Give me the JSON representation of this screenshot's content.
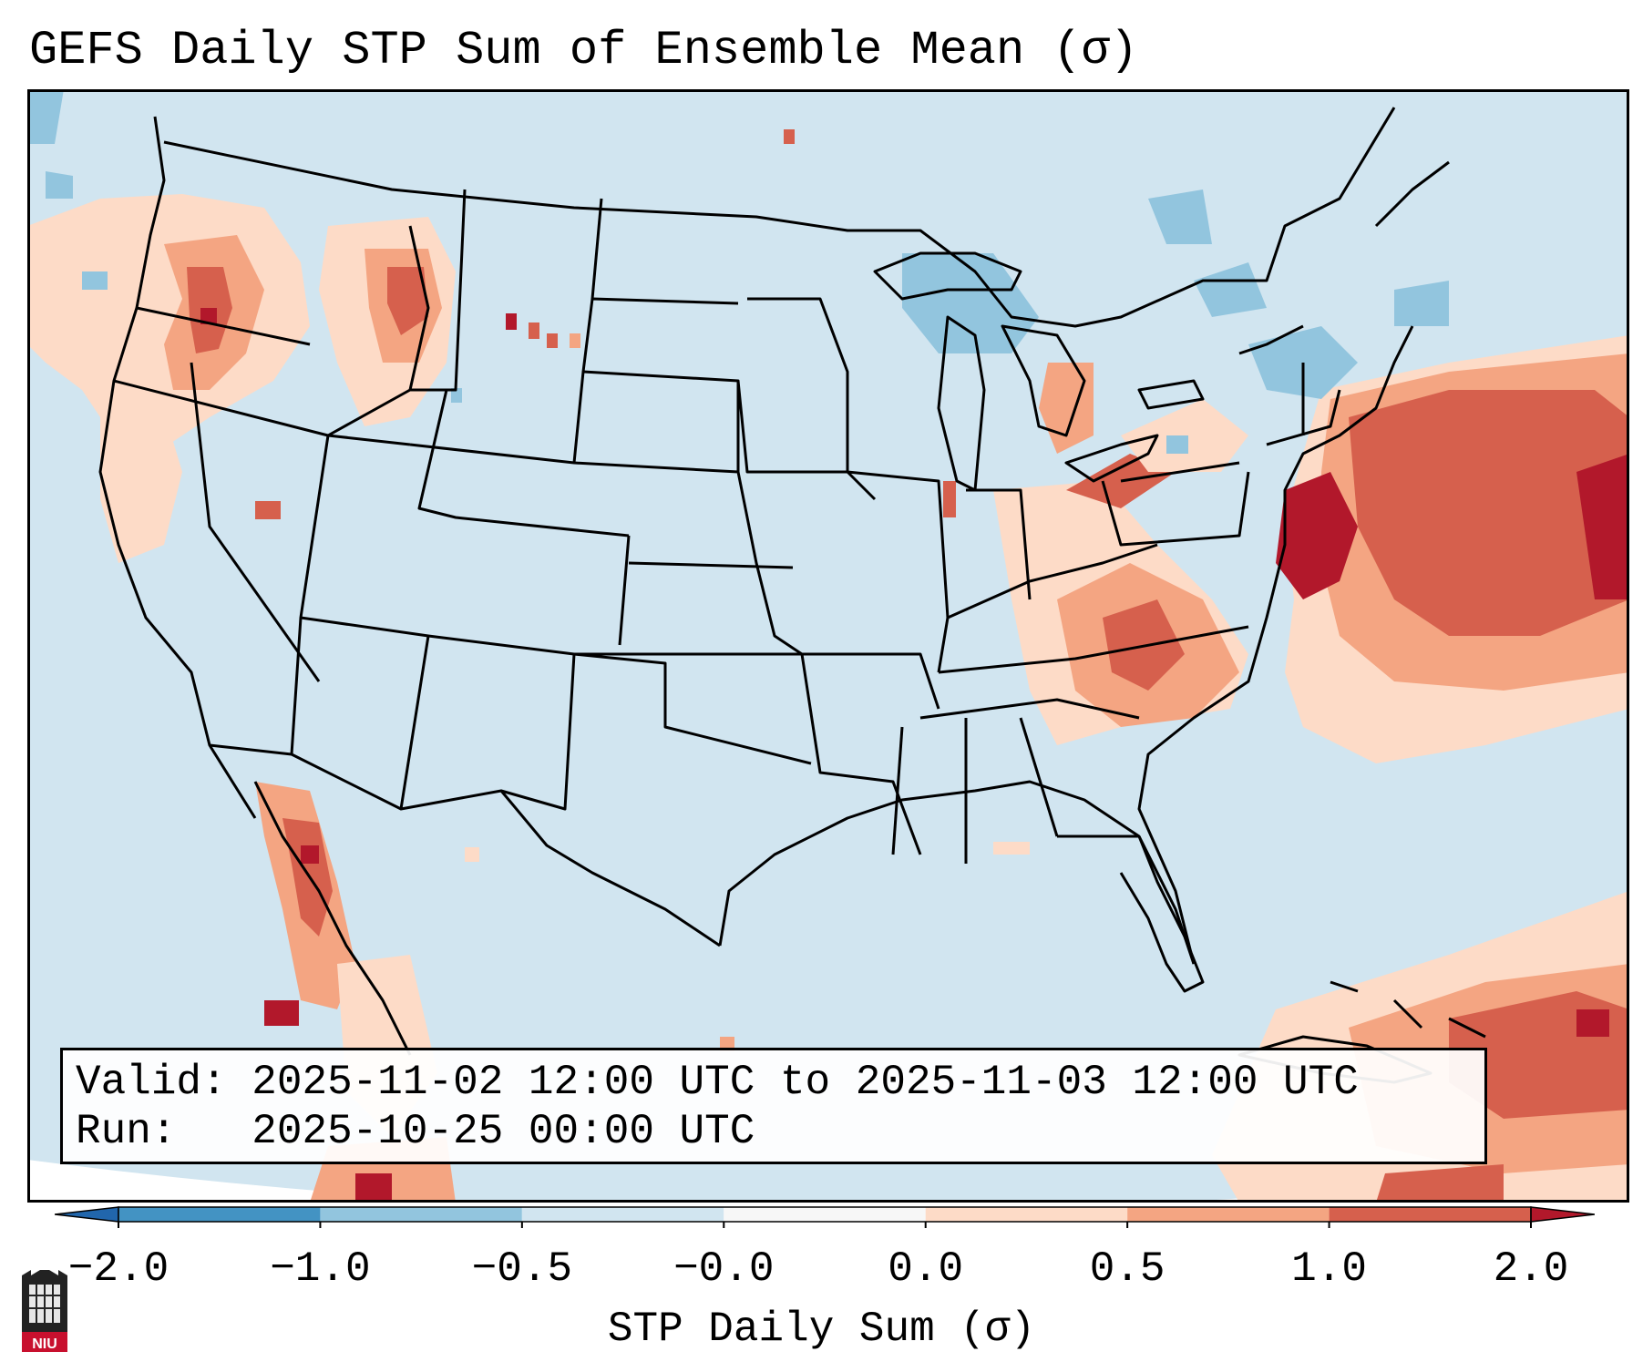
{
  "title": "GEFS Daily STP Sum of Ensemble Mean (σ)",
  "info": {
    "valid_label": "Valid:",
    "valid_value": "2025-11-02 12:00 UTC to 2025-11-03 12:00 UTC",
    "run_label": "Run:",
    "run_value": "2025-10-25 00:00 UTC"
  },
  "colorbar": {
    "label": "STP Daily Sum (σ)",
    "ticks": [
      "−2.0",
      "−1.0",
      "−0.5",
      "−0.0",
      "0.0",
      "0.5",
      "1.0",
      "2.0"
    ],
    "bins": [
      {
        "range": "-2.0 to -1.0",
        "color": "#4393c3"
      },
      {
        "range": "-1.0 to -0.5",
        "color": "#92c5de"
      },
      {
        "range": "-0.5 to -0.0",
        "color": "#d1e5f0"
      },
      {
        "range": "-0.0 to 0.0",
        "color": "#f7f7f7"
      },
      {
        "range": "0.0 to 0.5",
        "color": "#fddbc7"
      },
      {
        "range": "0.5 to 1.0",
        "color": "#f4a582"
      },
      {
        "range": "1.0 to 2.0",
        "color": "#d6604d"
      }
    ],
    "under_color": "#2166ac",
    "over_color": "#b2182b"
  },
  "map": {
    "background_color": "#d1e5f0",
    "region": "Contiguous United States, southern Canada and northern Mexico",
    "features": [
      "state boundaries",
      "coastlines",
      "country borders"
    ]
  },
  "logo": {
    "text": "NIU"
  }
}
